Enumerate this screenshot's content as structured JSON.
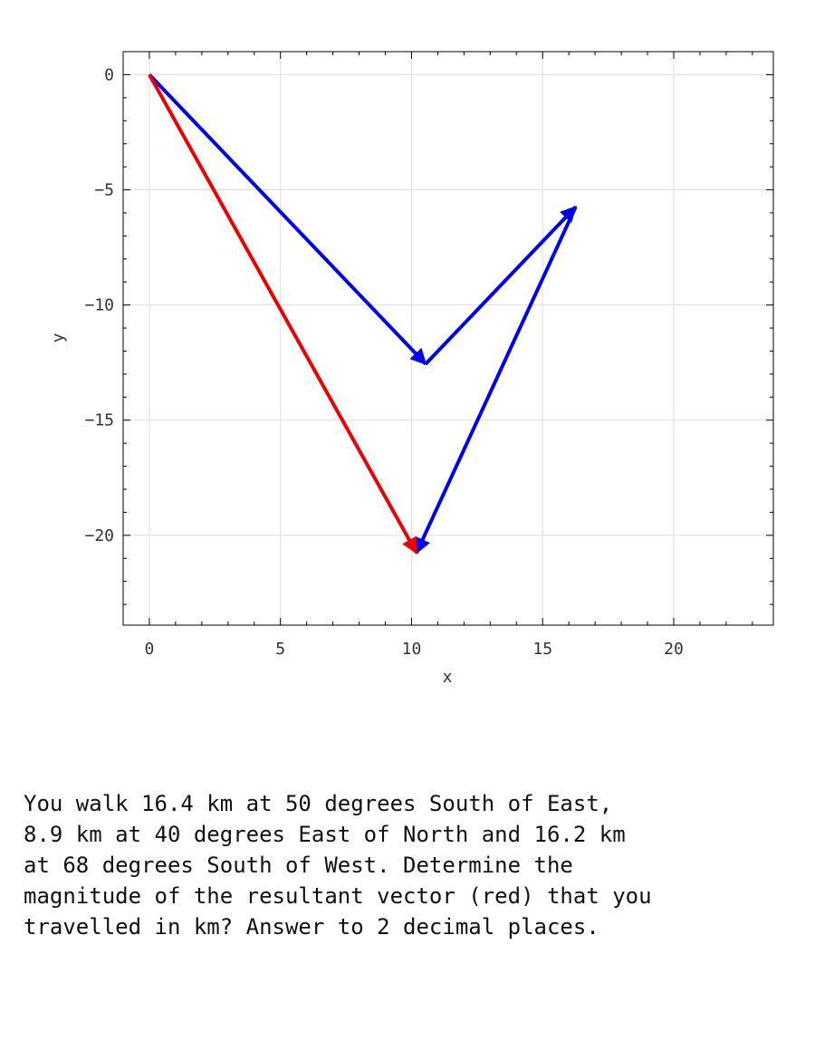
{
  "chart_data": {
    "type": "vector",
    "xlabel": "x",
    "ylabel": "y",
    "xlim": [
      -1,
      23.8
    ],
    "ylim": [
      -23.9,
      1
    ],
    "x_ticks": [
      0,
      5,
      10,
      15,
      20
    ],
    "y_ticks": [
      0,
      -5,
      -10,
      -15,
      -20
    ],
    "grid": true,
    "vectors": [
      {
        "from": [
          0,
          0
        ],
        "to": [
          10.54,
          -12.56
        ],
        "color": "#0000ee"
      },
      {
        "from": [
          10.54,
          -12.56
        ],
        "to": [
          16.26,
          -5.74
        ],
        "color": "#0000ee"
      },
      {
        "from": [
          16.26,
          -5.74
        ],
        "to": [
          10.19,
          -20.76
        ],
        "color": "#0000ee"
      },
      {
        "from": [
          0,
          0
        ],
        "to": [
          10.19,
          -20.76
        ],
        "color": "#ee0000"
      }
    ]
  },
  "question": {
    "text": "You walk 16.4 km at 50 degrees South of East,\n8.9 km at 40 degrees East of North and 16.2 km\nat 68 degrees South of West.  Determine the\nmagnitude of the resultant vector (red) that you\ntravelled in km? Answer to 2 decimal places."
  }
}
